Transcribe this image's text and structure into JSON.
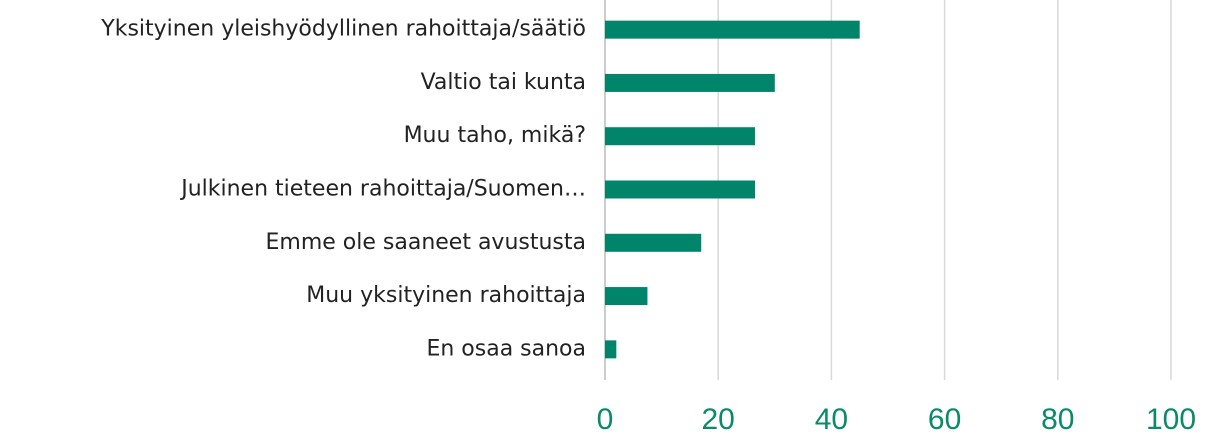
{
  "chart_data": {
    "type": "bar",
    "orientation": "horizontal",
    "categories": [
      "Yksityinen yleishyödyllinen rahoittaja/säätiö",
      "Valtio tai kunta",
      "Muu taho, mikä?",
      "Julkinen tieteen rahoittaja/Suomen…",
      "Emme ole saaneet avustusta",
      "Muu yksityinen rahoittaja",
      "En osaa sanoa"
    ],
    "values": [
      45,
      30,
      26.5,
      26.5,
      17,
      7.5,
      2
    ],
    "color": "#00856a",
    "xlim": [
      0,
      100
    ],
    "xticks": [
      0,
      20,
      40,
      60,
      80,
      100
    ],
    "grid": true
  }
}
